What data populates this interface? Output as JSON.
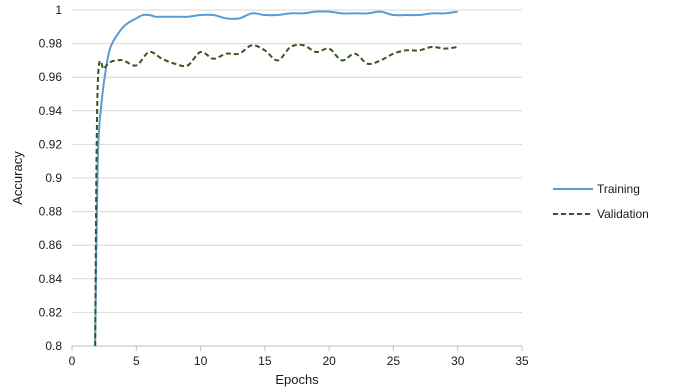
{
  "chart_data": {
    "type": "line",
    "xlabel": "Epochs",
    "ylabel": "Accuracy",
    "xlim": [
      0,
      35
    ],
    "ylim": [
      0.8,
      1.0
    ],
    "xticks": [
      0,
      5,
      10,
      15,
      20,
      25,
      30,
      35
    ],
    "yticks": [
      0.8,
      0.82,
      0.84,
      0.86,
      0.88,
      0.9,
      0.92,
      0.94,
      0.96,
      0.98,
      1.0
    ],
    "ytick_labels": [
      "0.8",
      "0.82",
      "0.84",
      "0.86",
      "0.88",
      "0.9",
      "0.92",
      "0.94",
      "0.96",
      "0.98",
      "1"
    ],
    "grid": "horizontal",
    "legend_position": "right",
    "series": [
      {
        "name": "Training",
        "color": "#5b9bd5",
        "dash": "solid",
        "x": [
          1.8,
          2,
          2.3,
          2.7,
          3,
          3.5,
          4,
          4.5,
          5,
          5.5,
          6,
          6.5,
          7,
          8,
          9,
          10,
          11,
          12,
          13,
          14,
          15,
          16,
          17,
          18,
          19,
          20,
          21,
          22,
          23,
          24,
          25,
          26,
          27,
          28,
          29,
          30
        ],
        "y": [
          0.8,
          0.91,
          0.945,
          0.968,
          0.978,
          0.985,
          0.99,
          0.993,
          0.995,
          0.997,
          0.997,
          0.996,
          0.996,
          0.996,
          0.996,
          0.997,
          0.997,
          0.995,
          0.995,
          0.998,
          0.997,
          0.997,
          0.998,
          0.998,
          0.999,
          0.999,
          0.998,
          0.998,
          0.998,
          0.999,
          0.997,
          0.997,
          0.997,
          0.998,
          0.998,
          0.999
        ]
      },
      {
        "name": "Validation",
        "color": "#375623",
        "dash": "dashed",
        "x": [
          1.8,
          2,
          2.5,
          3,
          3.5,
          4,
          5,
          6,
          7,
          8,
          9,
          10,
          11,
          12,
          13,
          14,
          15,
          16,
          17,
          18,
          19,
          20,
          21,
          22,
          23,
          24,
          25,
          26,
          27,
          28,
          29,
          30
        ],
        "y": [
          0.8,
          0.955,
          0.965,
          0.969,
          0.97,
          0.97,
          0.967,
          0.975,
          0.971,
          0.968,
          0.967,
          0.975,
          0.971,
          0.974,
          0.974,
          0.979,
          0.976,
          0.97,
          0.978,
          0.979,
          0.975,
          0.977,
          0.97,
          0.974,
          0.968,
          0.97,
          0.974,
          0.976,
          0.976,
          0.978,
          0.977,
          0.978
        ]
      }
    ]
  }
}
